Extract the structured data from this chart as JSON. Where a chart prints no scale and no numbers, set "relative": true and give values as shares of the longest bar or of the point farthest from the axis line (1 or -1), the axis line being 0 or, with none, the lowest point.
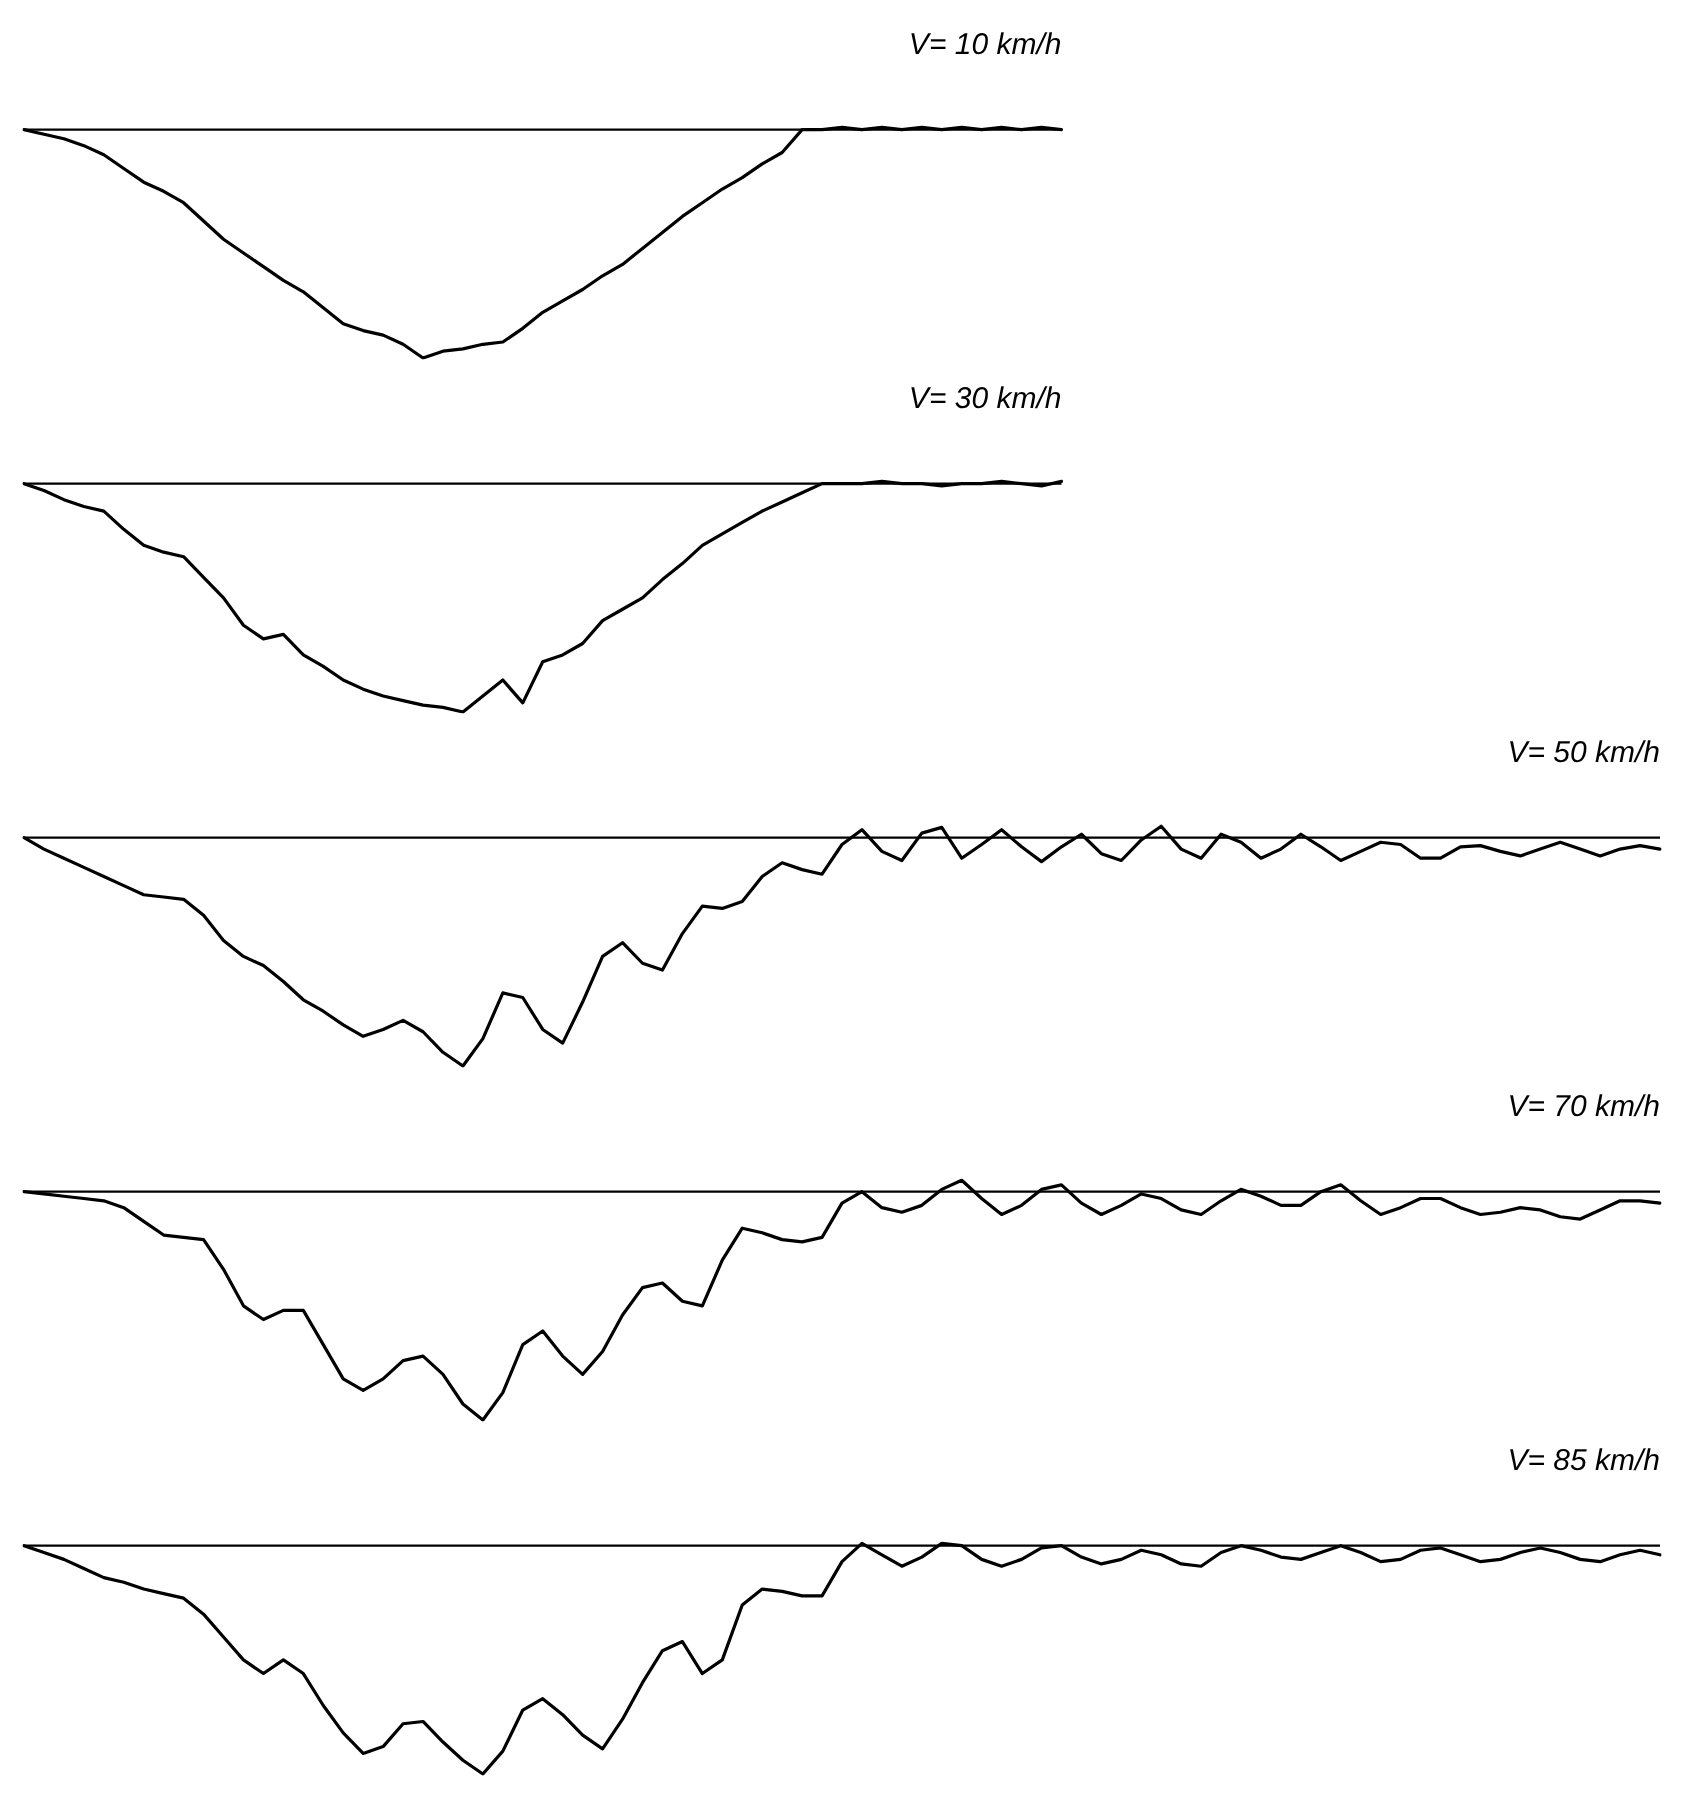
{
  "chart_data": [
    {
      "type": "line",
      "title": "V= 10 km/h",
      "relative": true,
      "tick_labels": false,
      "grid": false,
      "legend": false,
      "categories": [
        null,
        null,
        null,
        null,
        null,
        null,
        null,
        null,
        null,
        null,
        null,
        null,
        null,
        null,
        null,
        null,
        null,
        null,
        null,
        null,
        null,
        null,
        null,
        null,
        null,
        null,
        null,
        null,
        null,
        null,
        null,
        null,
        null,
        null,
        null,
        null,
        null,
        null,
        null,
        null,
        null,
        null,
        null,
        null,
        null,
        null,
        null,
        null,
        null,
        null,
        null,
        null,
        null
      ],
      "series": [
        {
          "color": "#000000",
          "values": [
            0,
            -0.02,
            -0.04,
            -0.07,
            -0.11,
            -0.17,
            -0.23,
            -0.27,
            -0.32,
            -0.4,
            -0.48,
            -0.54,
            -0.6,
            -0.66,
            -0.71,
            -0.78,
            -0.85,
            -0.88,
            -0.9,
            -0.94,
            -1.0,
            -0.97,
            -0.96,
            -0.94,
            -0.93,
            -0.87,
            -0.8,
            -0.75,
            -0.7,
            -0.64,
            -0.59,
            -0.52,
            -0.45,
            -0.38,
            -0.32,
            -0.26,
            -0.21,
            -0.15,
            -0.1,
            0,
            0,
            0.01,
            0,
            0.01,
            0,
            0.01,
            0,
            0.01,
            0,
            0.01,
            0,
            0.01,
            0
          ]
        }
      ]
    },
    {
      "type": "line",
      "title": "V= 30 km/h",
      "relative": true,
      "tick_labels": false,
      "grid": false,
      "legend": false,
      "categories": [
        null,
        null,
        null,
        null,
        null,
        null,
        null,
        null,
        null,
        null,
        null,
        null,
        null,
        null,
        null,
        null,
        null,
        null,
        null,
        null,
        null,
        null,
        null,
        null,
        null,
        null,
        null,
        null,
        null,
        null,
        null,
        null,
        null,
        null,
        null,
        null,
        null,
        null,
        null,
        null,
        null,
        null,
        null,
        null,
        null,
        null,
        null,
        null,
        null,
        null,
        null,
        null,
        null
      ],
      "series": [
        {
          "color": "#000000",
          "values": [
            0,
            -0.03,
            -0.07,
            -0.1,
            -0.12,
            -0.2,
            -0.27,
            -0.3,
            -0.32,
            -0.41,
            -0.5,
            -0.62,
            -0.68,
            -0.66,
            -0.75,
            -0.8,
            -0.86,
            -0.9,
            -0.93,
            -0.95,
            -0.97,
            -0.98,
            -1.0,
            -0.93,
            -0.86,
            -0.96,
            -0.78,
            -0.75,
            -0.7,
            -0.6,
            -0.55,
            -0.5,
            -0.42,
            -0.35,
            -0.27,
            -0.22,
            -0.17,
            -0.12,
            -0.08,
            -0.04,
            0,
            0,
            0,
            0.01,
            0,
            0,
            -0.01,
            0,
            0,
            0.01,
            0,
            -0.01,
            0.01
          ]
        }
      ]
    },
    {
      "type": "line",
      "title": "V= 50 km/h",
      "relative": true,
      "tick_labels": false,
      "grid": false,
      "legend": false,
      "categories": [
        null,
        null,
        null,
        null,
        null,
        null,
        null,
        null,
        null,
        null,
        null,
        null,
        null,
        null,
        null,
        null,
        null,
        null,
        null,
        null,
        null,
        null,
        null,
        null,
        null,
        null,
        null,
        null,
        null,
        null,
        null,
        null,
        null,
        null,
        null,
        null,
        null,
        null,
        null,
        null,
        null,
        null,
        null,
        null,
        null,
        null,
        null,
        null,
        null,
        null,
        null,
        null,
        null,
        null,
        null,
        null,
        null,
        null,
        null,
        null,
        null,
        null,
        null,
        null,
        null,
        null,
        null,
        null,
        null,
        null,
        null,
        null,
        null,
        null,
        null,
        null,
        null,
        null,
        null,
        null,
        null,
        null,
        null
      ],
      "series": [
        {
          "color": "#000000",
          "values": [
            0,
            -0.05,
            -0.09,
            -0.13,
            -0.17,
            -0.21,
            -0.25,
            -0.26,
            -0.27,
            -0.34,
            -0.45,
            -0.52,
            -0.56,
            -0.63,
            -0.71,
            -0.76,
            -0.82,
            -0.87,
            -0.84,
            -0.8,
            -0.85,
            -0.94,
            -1.0,
            -0.88,
            -0.68,
            -0.7,
            -0.84,
            -0.9,
            -0.72,
            -0.52,
            -0.46,
            -0.55,
            -0.58,
            -0.42,
            -0.3,
            -0.31,
            -0.28,
            -0.17,
            -0.11,
            -0.14,
            -0.16,
            -0.03,
            0.035,
            -0.06,
            -0.1,
            0.02,
            0.045,
            -0.09,
            -0.03,
            0.035,
            -0.04,
            -0.105,
            -0.04,
            0.015,
            -0.07,
            -0.1,
            -0.01,
            0.05,
            -0.05,
            -0.09,
            0.015,
            -0.02,
            -0.09,
            -0.05,
            0.015,
            -0.04,
            -0.1,
            -0.06,
            -0.02,
            -0.03,
            -0.09,
            -0.09,
            -0.04,
            -0.035,
            -0.06,
            -0.08,
            -0.05,
            -0.02,
            -0.05,
            -0.08,
            -0.05,
            -0.035,
            -0.05
          ]
        }
      ]
    },
    {
      "type": "line",
      "title": "V= 70 km/h",
      "relative": true,
      "tick_labels": false,
      "grid": false,
      "legend": false,
      "categories": [
        null,
        null,
        null,
        null,
        null,
        null,
        null,
        null,
        null,
        null,
        null,
        null,
        null,
        null,
        null,
        null,
        null,
        null,
        null,
        null,
        null,
        null,
        null,
        null,
        null,
        null,
        null,
        null,
        null,
        null,
        null,
        null,
        null,
        null,
        null,
        null,
        null,
        null,
        null,
        null,
        null,
        null,
        null,
        null,
        null,
        null,
        null,
        null,
        null,
        null,
        null,
        null,
        null,
        null,
        null,
        null,
        null,
        null,
        null,
        null,
        null,
        null,
        null,
        null,
        null,
        null,
        null,
        null,
        null,
        null,
        null,
        null,
        null,
        null,
        null,
        null,
        null,
        null,
        null,
        null,
        null,
        null,
        null
      ],
      "series": [
        {
          "color": "#000000",
          "values": [
            0,
            -0.01,
            -0.02,
            -0.03,
            -0.04,
            -0.07,
            -0.13,
            -0.19,
            -0.2,
            -0.21,
            -0.34,
            -0.5,
            -0.56,
            -0.52,
            -0.52,
            -0.67,
            -0.82,
            -0.87,
            -0.82,
            -0.74,
            -0.72,
            -0.8,
            -0.93,
            -1.0,
            -0.88,
            -0.67,
            -0.61,
            -0.72,
            -0.8,
            -0.7,
            -0.54,
            -0.42,
            -0.4,
            -0.48,
            -0.5,
            -0.3,
            -0.16,
            -0.18,
            -0.21,
            -0.22,
            -0.2,
            -0.05,
            0,
            -0.07,
            -0.09,
            -0.06,
            0.01,
            0.05,
            -0.03,
            -0.1,
            -0.06,
            0.01,
            0.03,
            -0.05,
            -0.1,
            -0.06,
            -0.01,
            -0.03,
            -0.08,
            -0.1,
            -0.04,
            0.01,
            -0.02,
            -0.06,
            -0.06,
            0,
            0.03,
            -0.04,
            -0.1,
            -0.07,
            -0.03,
            -0.03,
            -0.07,
            -0.1,
            -0.09,
            -0.07,
            -0.08,
            -0.11,
            -0.12,
            -0.08,
            -0.04,
            -0.04,
            -0.05
          ]
        }
      ]
    },
    {
      "type": "line",
      "title": "V= 85 km/h",
      "relative": true,
      "tick_labels": false,
      "grid": false,
      "legend": false,
      "categories": [
        null,
        null,
        null,
        null,
        null,
        null,
        null,
        null,
        null,
        null,
        null,
        null,
        null,
        null,
        null,
        null,
        null,
        null,
        null,
        null,
        null,
        null,
        null,
        null,
        null,
        null,
        null,
        null,
        null,
        null,
        null,
        null,
        null,
        null,
        null,
        null,
        null,
        null,
        null,
        null,
        null,
        null,
        null,
        null,
        null,
        null,
        null,
        null,
        null,
        null,
        null,
        null,
        null,
        null,
        null,
        null,
        null,
        null,
        null,
        null,
        null,
        null,
        null,
        null,
        null,
        null,
        null,
        null,
        null,
        null,
        null,
        null,
        null,
        null,
        null,
        null,
        null,
        null,
        null,
        null,
        null,
        null,
        null
      ],
      "series": [
        {
          "color": "#000000",
          "values": [
            0,
            -0.03,
            -0.06,
            -0.1,
            -0.14,
            -0.16,
            -0.19,
            -0.21,
            -0.23,
            -0.3,
            -0.4,
            -0.5,
            -0.56,
            -0.5,
            -0.56,
            -0.7,
            -0.82,
            -0.91,
            -0.88,
            -0.78,
            -0.77,
            -0.86,
            -0.94,
            -1.0,
            -0.9,
            -0.72,
            -0.67,
            -0.74,
            -0.83,
            -0.89,
            -0.76,
            -0.6,
            -0.46,
            -0.42,
            -0.56,
            -0.5,
            -0.26,
            -0.19,
            -0.2,
            -0.22,
            -0.22,
            -0.07,
            0.01,
            -0.04,
            -0.09,
            -0.05,
            0.01,
            0,
            -0.06,
            -0.09,
            -0.06,
            -0.01,
            0,
            -0.05,
            -0.08,
            -0.06,
            -0.02,
            -0.04,
            -0.08,
            -0.09,
            -0.03,
            0,
            -0.02,
            -0.05,
            -0.06,
            -0.03,
            0,
            -0.03,
            -0.07,
            -0.06,
            -0.02,
            -0.01,
            -0.04,
            -0.07,
            -0.06,
            -0.03,
            -0.01,
            -0.03,
            -0.06,
            -0.07,
            -0.04,
            -0.02,
            -0.04
          ]
        }
      ]
    }
  ]
}
